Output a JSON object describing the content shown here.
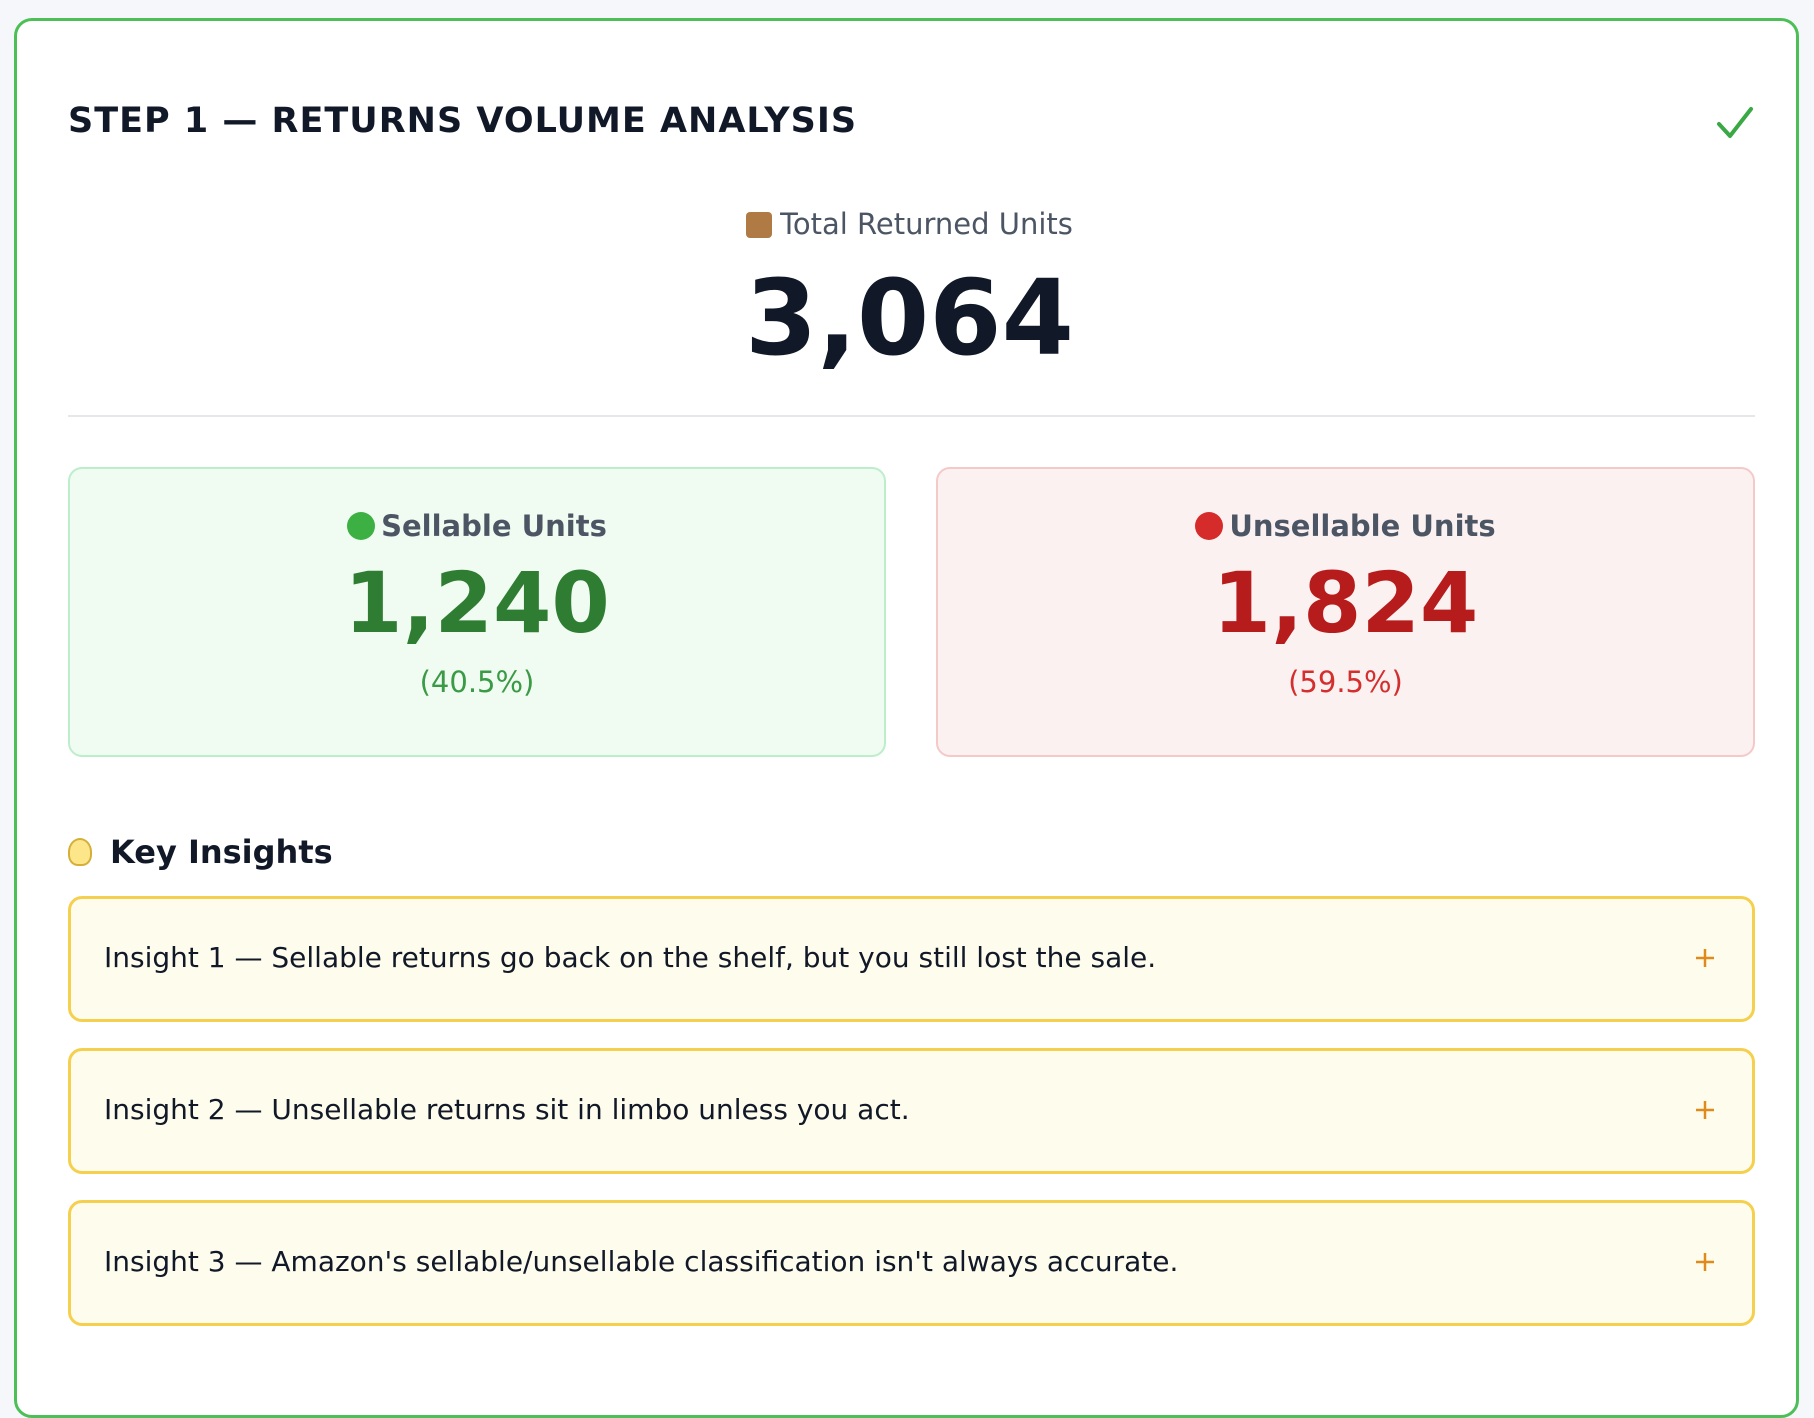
{
  "header": {
    "title": "STEP 1 — RETURNS VOLUME ANALYSIS"
  },
  "total": {
    "label": "Total Returned Units",
    "value": "3,064"
  },
  "sellable": {
    "label": "Sellable Units",
    "value": "1,240",
    "percent": "(40.5%)"
  },
  "unsellable": {
    "label": "Unsellable Units",
    "value": "1,824",
    "percent": "(59.5%)"
  },
  "insights": {
    "title": "Key Insights",
    "items": [
      {
        "text": "Insight 1 — Sellable returns go back on the shelf, but you still lost the sale."
      },
      {
        "text": "Insight 2 — Unsellable returns sit in limbo unless you act."
      },
      {
        "text": "Insight 3 — Amazon's sellable/unsellable classification isn't always accurate."
      }
    ]
  }
}
